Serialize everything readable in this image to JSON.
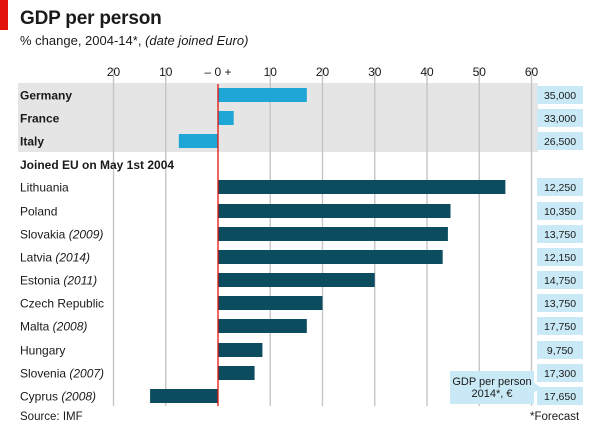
{
  "title": "GDP per person",
  "subtitle": "% change, 2004-14*,",
  "subtitle_note": "(date joined Euro)",
  "source": "Source: IMF",
  "footnote": "*Forecast",
  "colors": {
    "euro_bar": "#1ea6d6",
    "eu_bar": "#0b4d5e",
    "top_band": "#e5e5e5",
    "zero_line": "#e3120b",
    "value_box": "#c9e9f6",
    "brand_mark": "#e3120b"
  },
  "chart_data": {
    "type": "bar",
    "orientation": "horizontal",
    "title": "GDP per person",
    "subtitle": "% change, 2004-14*, (date joined Euro)",
    "xlim": [
      -20,
      60
    ],
    "x_ticks": [
      -20,
      -10,
      0,
      10,
      20,
      30,
      40,
      50,
      60
    ],
    "x_tick_labels": [
      "20",
      "10",
      "–   0   +",
      "10",
      "20",
      "30",
      "40",
      "50",
      "60"
    ],
    "grid": true,
    "section_label": "Joined EU on May 1st 2004",
    "value_column_label": "GDP per person 2014*, €",
    "value_column_label_lines": [
      "GDP per person",
      "2014*, €"
    ],
    "groups": [
      {
        "name": "",
        "rows": [
          {
            "country": "Germany",
            "year": "",
            "value": 17,
            "gdp": "35,000"
          },
          {
            "country": "France",
            "year": "",
            "value": 3,
            "gdp": "33,000"
          },
          {
            "country": "Italy",
            "year": "",
            "value": -7.5,
            "gdp": "26,500"
          }
        ]
      },
      {
        "name": "Joined EU on May 1st 2004",
        "rows": [
          {
            "country": "Lithuania",
            "year": "",
            "value": 55,
            "gdp": "12,250"
          },
          {
            "country": "Poland",
            "year": "",
            "value": 44.5,
            "gdp": "10,350"
          },
          {
            "country": "Slovakia",
            "year": "(2009)",
            "value": 44,
            "gdp": "13,750"
          },
          {
            "country": "Latvia",
            "year": "(2014)",
            "value": 43,
            "gdp": "12,150"
          },
          {
            "country": "Estonia",
            "year": "(2011)",
            "value": 30,
            "gdp": "14,750"
          },
          {
            "country": "Czech Republic",
            "year": "",
            "value": 20,
            "gdp": "13,750"
          },
          {
            "country": "Malta",
            "year": "(2008)",
            "value": 17,
            "gdp": "17,750"
          },
          {
            "country": "Hungary",
            "year": "",
            "value": 8.5,
            "gdp": "9,750"
          },
          {
            "country": "Slovenia",
            "year": "(2007)",
            "value": 7,
            "gdp": "17,300"
          },
          {
            "country": "Cyprus",
            "year": "(2008)",
            "value": -13,
            "gdp": "17,650"
          }
        ]
      }
    ]
  }
}
